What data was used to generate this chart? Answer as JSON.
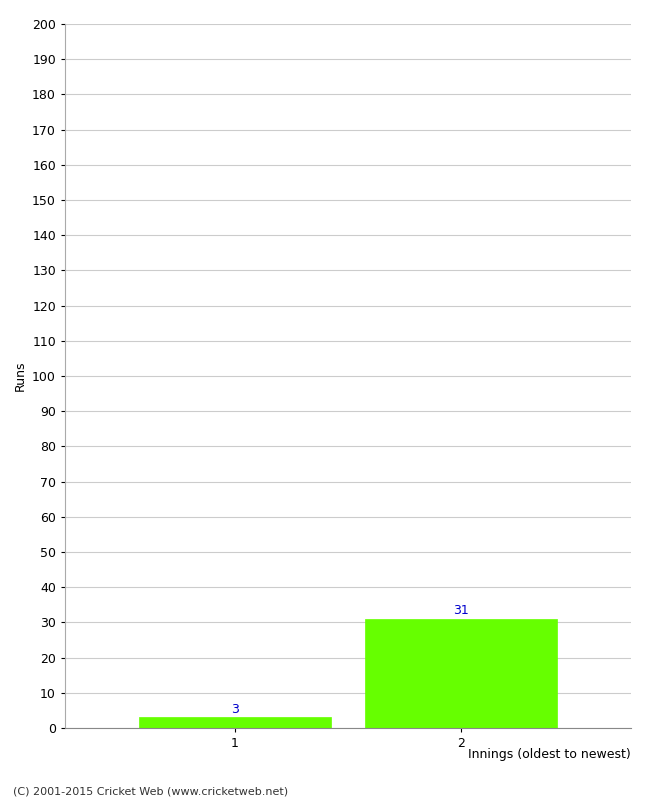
{
  "categories": [
    "1",
    "2"
  ],
  "values": [
    3,
    31
  ],
  "bar_color": "#66ff00",
  "bar_edge_color": "#66ff00",
  "ylabel": "Runs",
  "xlabel": "Innings (oldest to newest)",
  "ylim": [
    0,
    200
  ],
  "yticks": [
    0,
    10,
    20,
    30,
    40,
    50,
    60,
    70,
    80,
    90,
    100,
    110,
    120,
    130,
    140,
    150,
    160,
    170,
    180,
    190,
    200
  ],
  "background_color": "#ffffff",
  "grid_color": "#cccccc",
  "label_color": "#0000cc",
  "footer": "(C) 2001-2015 Cricket Web (www.cricketweb.net)",
  "bar_width": 0.85,
  "x_positions": [
    1,
    2
  ],
  "xlim": [
    0.25,
    2.75
  ]
}
